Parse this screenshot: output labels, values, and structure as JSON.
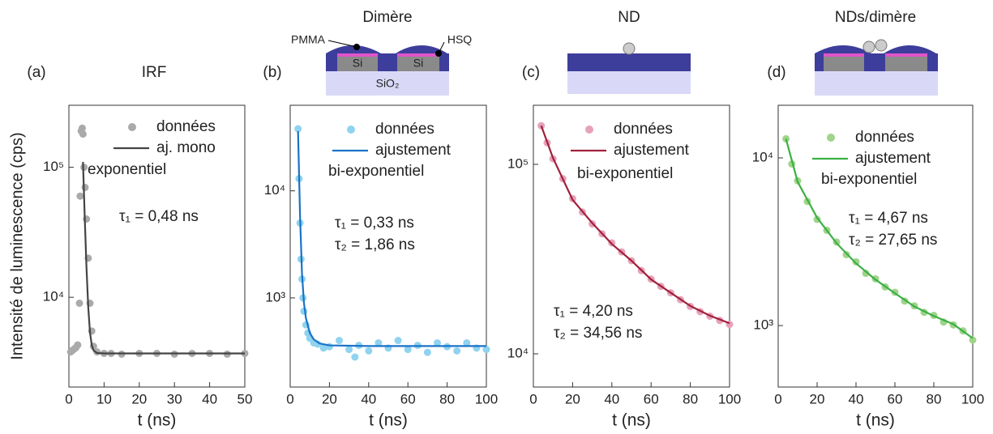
{
  "chart_data": [
    {
      "type": "scatter",
      "panel_label": "(a)",
      "title": "IRF",
      "ylabel": "Intensité de luminescence (cps)",
      "xlabel": "t (ns)",
      "xlim": [
        0,
        50
      ],
      "xticks": [
        0,
        10,
        20,
        30,
        40,
        50
      ],
      "yscale": "log",
      "ylim": [
        2040,
        300000
      ],
      "yticks": [
        {
          "value": 10000,
          "label": "10⁴"
        },
        {
          "value": 100000,
          "label": "10⁵"
        }
      ],
      "series": [
        {
          "name": [
            "données"
          ],
          "style": "markers",
          "color": "#aaaaaa",
          "x": [
            0.5,
            1,
            1.5,
            2,
            2.5,
            3,
            3.2,
            3.5,
            3.8,
            4,
            4.3,
            4.6,
            5,
            5.5,
            6,
            6.5,
            7,
            8,
            10,
            12,
            15,
            20,
            25,
            30,
            35,
            40,
            45,
            50
          ],
          "values": [
            3800,
            3900,
            4000,
            4100,
            4300,
            9000,
            60000,
            190000,
            200000,
            180000,
            100000,
            70000,
            40000,
            20000,
            9000,
            5500,
            4200,
            3800,
            3700,
            3700,
            3650,
            3700,
            3700,
            3650,
            3700,
            3700,
            3650,
            3700
          ]
        },
        {
          "name": [
            "aj. mono",
            "exponentiel"
          ],
          "style": "line",
          "color": "#444444",
          "x": [
            4,
            4.5,
            5,
            5.5,
            6,
            6.5,
            7,
            8,
            10,
            20,
            30,
            40,
            50
          ],
          "values": [
            110000,
            41200,
            16900,
            8370,
            5350,
            4280,
            3905,
            3725,
            3700,
            3700,
            3700,
            3700,
            3700
          ]
        }
      ],
      "annotations": [
        "τ₁ = 0,48 ns"
      ]
    },
    {
      "type": "scatter",
      "panel_label": "(b)",
      "title": "Dimère",
      "xlabel": "t (ns)",
      "schematic_labels": [
        "PMMA",
        "HSQ",
        "Si",
        "Si",
        "SiO₂"
      ],
      "xlim": [
        0,
        100
      ],
      "xticks": [
        0,
        20,
        40,
        60,
        80,
        100
      ],
      "yscale": "log",
      "ylim": [
        147,
        63000
      ],
      "yticks": [
        {
          "value": 1000,
          "label": "10³"
        },
        {
          "value": 10000,
          "label": "10⁴"
        }
      ],
      "series": [
        {
          "name": [
            "données"
          ],
          "style": "markers",
          "color": "#8fd3f0",
          "x": [
            4,
            4.5,
            5,
            5.5,
            6,
            6.5,
            7,
            8,
            9,
            10,
            12,
            14,
            17,
            20,
            25,
            30,
            33,
            35,
            40,
            45,
            50,
            55,
            60,
            65,
            70,
            75,
            80,
            85,
            90,
            95,
            100
          ],
          "values": [
            38000,
            13000,
            5000,
            2300,
            1500,
            1000,
            750,
            560,
            470,
            420,
            380,
            370,
            340,
            350,
            400,
            330,
            280,
            360,
            320,
            380,
            340,
            400,
            330,
            360,
            310,
            380,
            350,
            320,
            380,
            340,
            330
          ]
        },
        {
          "name": [
            "ajustement",
            "bi-exponentiel"
          ],
          "style": "line",
          "color": "#1a73c7",
          "x": [
            4,
            5,
            6,
            7,
            8,
            10,
            12,
            15,
            20,
            40,
            60,
            80,
            100
          ],
          "values": [
            36000,
            6000,
            1700,
            900,
            650,
            470,
            410,
            375,
            360,
            355,
            355,
            355,
            355
          ]
        }
      ],
      "annotations": [
        "τ₁ = 0,33 ns",
        "τ₂ = 1,86 ns"
      ]
    },
    {
      "type": "scatter",
      "panel_label": "(c)",
      "title": "ND",
      "xlabel": "t (ns)",
      "xlim": [
        0,
        100
      ],
      "xticks": [
        0,
        20,
        40,
        60,
        80,
        100
      ],
      "yscale": "log",
      "ylim": [
        6680,
        205000
      ],
      "yticks": [
        {
          "value": 10000,
          "label": "10⁴"
        },
        {
          "value": 100000,
          "label": "10⁵"
        }
      ],
      "series": [
        {
          "name": [
            "données"
          ],
          "style": "markers",
          "color": "#e7a1b8",
          "x": [
            4,
            7,
            10,
            15,
            20,
            25,
            30,
            35,
            40,
            45,
            50,
            55,
            60,
            65,
            70,
            75,
            80,
            85,
            90,
            95,
            100
          ],
          "values": [
            160000,
            130000,
            107000,
            84000,
            66000,
            56000,
            48500,
            43000,
            38500,
            34500,
            31000,
            27500,
            24800,
            22700,
            21000,
            19300,
            17800,
            16700,
            15800,
            15000,
            14300
          ]
        },
        {
          "name": [
            "ajustement",
            "bi-exponentiel"
          ],
          "style": "line",
          "color": "#a0213c",
          "x": [
            4,
            10,
            20,
            30,
            40,
            50,
            60,
            70,
            80,
            90,
            100
          ],
          "values": [
            160000,
            108000,
            65000,
            49000,
            38000,
            31000,
            24700,
            21000,
            17900,
            15900,
            14500
          ]
        }
      ],
      "annotations": [
        "τ₁ = 4,20 ns",
        "τ₂ = 34,56 ns"
      ]
    },
    {
      "type": "scatter",
      "panel_label": "(d)",
      "title": "NDs/dimère",
      "xlabel": "t (ns)",
      "xlim": [
        0,
        100
      ],
      "xticks": [
        0,
        20,
        40,
        60,
        80,
        100
      ],
      "yscale": "log",
      "ylim": [
        430,
        20600
      ],
      "yticks": [
        {
          "value": 1000,
          "label": "10³"
        },
        {
          "value": 10000,
          "label": "10⁴"
        }
      ],
      "series": [
        {
          "name": [
            "données"
          ],
          "style": "markers",
          "color": "#9fd48a",
          "x": [
            4,
            7,
            10,
            15,
            20,
            25,
            30,
            35,
            40,
            45,
            50,
            55,
            60,
            65,
            70,
            75,
            80,
            85,
            90,
            95,
            100
          ],
          "values": [
            13000,
            9200,
            7300,
            5500,
            4300,
            3700,
            3150,
            2650,
            2400,
            2050,
            1900,
            1700,
            1580,
            1400,
            1310,
            1200,
            1150,
            1050,
            1010,
            930,
            820
          ]
        },
        {
          "name": [
            "ajustement",
            "bi-exponentiel"
          ],
          "style": "line",
          "color": "#3cb043",
          "x": [
            4,
            10,
            20,
            30,
            40,
            50,
            60,
            70,
            80,
            90,
            100
          ],
          "values": [
            13000,
            7200,
            4400,
            3100,
            2350,
            1880,
            1560,
            1300,
            1140,
            1020,
            840
          ]
        }
      ],
      "annotations": [
        "τ₁ = 4,67 ns",
        "τ₂ = 27,65 ns"
      ]
    }
  ]
}
